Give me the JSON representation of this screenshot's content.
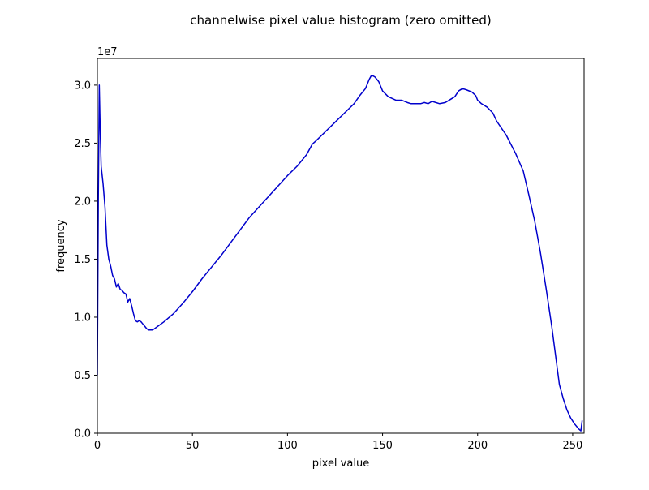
{
  "chart_data": {
    "type": "line",
    "title": "channelwise pixel value histogram (zero omitted)",
    "xlabel": "pixel value",
    "ylabel": "frequency",
    "y_offset_text": "1e7",
    "xlim": [
      0,
      256
    ],
    "ylim": [
      0,
      32300000.0
    ],
    "x_ticks": [
      0,
      50,
      100,
      150,
      200,
      250
    ],
    "x_tick_labels": [
      "0",
      "50",
      "100",
      "150",
      "200",
      "250"
    ],
    "y_ticks": [
      0,
      5000000,
      10000000,
      15000000,
      20000000,
      25000000,
      30000000
    ],
    "y_tick_labels": [
      "0.0",
      "0.5",
      "1.0",
      "1.5",
      "2.0",
      "2.5",
      "3.0"
    ],
    "grid": false,
    "legend": "none",
    "series": [
      {
        "color": "#0000cc",
        "points": [
          [
            0,
            5000000
          ],
          [
            0.5,
            20000000
          ],
          [
            1,
            30000000
          ],
          [
            1.5,
            26000000
          ],
          [
            2,
            23000000
          ],
          [
            3,
            21500000
          ],
          [
            4,
            19500000
          ],
          [
            5,
            16200000
          ],
          [
            6,
            15000000
          ],
          [
            7,
            14400000
          ],
          [
            8,
            13600000
          ],
          [
            9,
            13300000
          ],
          [
            10,
            12600000
          ],
          [
            11,
            12900000
          ],
          [
            12,
            12400000
          ],
          [
            13,
            12300000
          ],
          [
            14,
            12100000
          ],
          [
            15,
            12000000
          ],
          [
            16,
            11300000
          ],
          [
            17,
            11600000
          ],
          [
            18,
            11000000
          ],
          [
            19,
            10300000
          ],
          [
            20,
            9700000
          ],
          [
            21,
            9600000
          ],
          [
            22,
            9700000
          ],
          [
            23,
            9600000
          ],
          [
            24,
            9400000
          ],
          [
            25,
            9200000
          ],
          [
            26,
            9000000
          ],
          [
            27,
            8900000
          ],
          [
            28,
            8900000
          ],
          [
            29,
            8900000
          ],
          [
            30,
            9000000
          ],
          [
            35,
            9600000
          ],
          [
            40,
            10300000
          ],
          [
            45,
            11200000
          ],
          [
            50,
            12200000
          ],
          [
            55,
            13300000
          ],
          [
            60,
            14300000
          ],
          [
            65,
            15300000
          ],
          [
            70,
            16400000
          ],
          [
            75,
            17500000
          ],
          [
            80,
            18600000
          ],
          [
            85,
            19500000
          ],
          [
            90,
            20400000
          ],
          [
            95,
            21300000
          ],
          [
            100,
            22200000
          ],
          [
            105,
            23000000
          ],
          [
            110,
            24000000
          ],
          [
            113,
            24900000
          ],
          [
            115,
            25200000
          ],
          [
            120,
            26000000
          ],
          [
            125,
            26800000
          ],
          [
            130,
            27600000
          ],
          [
            135,
            28400000
          ],
          [
            138,
            29100000
          ],
          [
            141,
            29700000
          ],
          [
            143,
            30500000
          ],
          [
            144,
            30800000
          ],
          [
            145,
            30800000
          ],
          [
            146,
            30700000
          ],
          [
            148,
            30300000
          ],
          [
            150,
            29500000
          ],
          [
            153,
            29000000
          ],
          [
            157,
            28700000
          ],
          [
            160,
            28700000
          ],
          [
            163,
            28500000
          ],
          [
            165,
            28400000
          ],
          [
            170,
            28400000
          ],
          [
            172,
            28500000
          ],
          [
            174,
            28400000
          ],
          [
            176,
            28600000
          ],
          [
            178,
            28500000
          ],
          [
            180,
            28400000
          ],
          [
            183,
            28500000
          ],
          [
            186,
            28800000
          ],
          [
            188,
            29000000
          ],
          [
            190,
            29500000
          ],
          [
            192,
            29700000
          ],
          [
            194,
            29600000
          ],
          [
            197,
            29400000
          ],
          [
            199,
            29100000
          ],
          [
            200,
            28700000
          ],
          [
            202,
            28400000
          ],
          [
            205,
            28100000
          ],
          [
            208,
            27600000
          ],
          [
            210,
            26900000
          ],
          [
            215,
            25700000
          ],
          [
            220,
            24100000
          ],
          [
            224,
            22600000
          ],
          [
            227,
            20500000
          ],
          [
            230,
            18300000
          ],
          [
            233,
            15600000
          ],
          [
            236,
            12500000
          ],
          [
            239,
            9200000
          ],
          [
            241,
            6700000
          ],
          [
            243,
            4200000
          ],
          [
            245,
            3000000
          ],
          [
            247,
            2000000
          ],
          [
            249,
            1300000
          ],
          [
            251,
            800000
          ],
          [
            253,
            400000
          ],
          [
            254.3,
            200000
          ],
          [
            255,
            1100000
          ]
        ]
      }
    ]
  }
}
